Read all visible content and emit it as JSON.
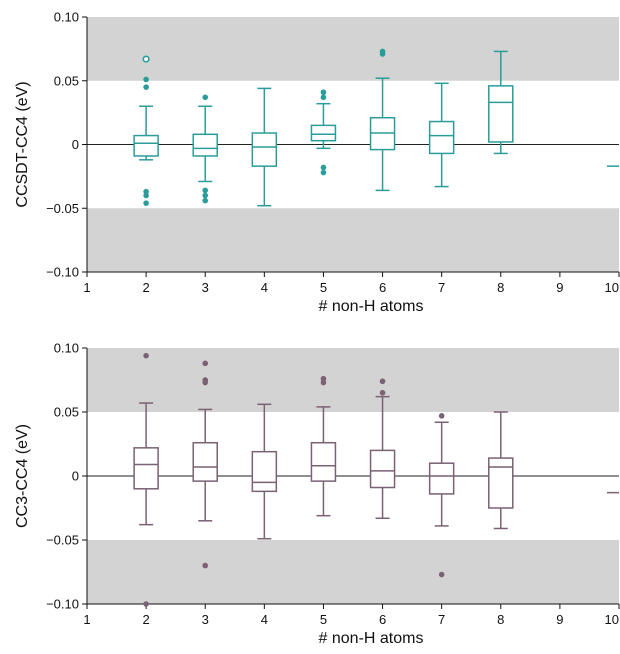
{
  "chart_data": [
    {
      "type": "box",
      "id": "top",
      "color": "#2a9d9a",
      "ylabel": "CCSDT-CC4 (eV)",
      "xlabel": "# non-H atoms",
      "xlim": [
        1,
        10
      ],
      "ylim": [
        -0.1,
        0.1
      ],
      "xticks": [
        1,
        2,
        3,
        4,
        5,
        6,
        7,
        8,
        9,
        10
      ],
      "yticks": [
        -0.1,
        -0.05,
        0,
        0.05,
        0.1
      ],
      "ytick_labels": [
        "−0.10",
        "−0.05",
        "0",
        "0.05",
        "0.10"
      ],
      "shaded_bands": [
        [
          0.05,
          0.1
        ],
        [
          -0.1,
          -0.05
        ]
      ],
      "zero_line": 0,
      "groups": [
        {
          "x": 2,
          "q1": -0.009,
          "median": 0.001,
          "q3": 0.007,
          "whisker_low": -0.012,
          "whisker_high": 0.03,
          "outliers": [
            0.067,
            0.051,
            0.045,
            -0.037,
            -0.04,
            -0.046
          ],
          "open_outliers": [
            0.067
          ]
        },
        {
          "x": 3,
          "q1": -0.009,
          "median": -0.003,
          "q3": 0.008,
          "whisker_low": -0.029,
          "whisker_high": 0.03,
          "outliers": [
            0.037,
            -0.036,
            -0.04,
            -0.044
          ],
          "open_outliers": []
        },
        {
          "x": 4,
          "q1": -0.017,
          "median": -0.002,
          "q3": 0.009,
          "whisker_low": -0.048,
          "whisker_high": 0.044,
          "outliers": [],
          "open_outliers": []
        },
        {
          "x": 5,
          "q1": 0.003,
          "median": 0.008,
          "q3": 0.015,
          "whisker_low": -0.003,
          "whisker_high": 0.032,
          "outliers": [
            0.041,
            0.037,
            -0.018,
            -0.022
          ],
          "open_outliers": []
        },
        {
          "x": 6,
          "q1": -0.004,
          "median": 0.009,
          "q3": 0.021,
          "whisker_low": -0.036,
          "whisker_high": 0.052,
          "outliers": [
            0.073,
            0.071
          ],
          "open_outliers": []
        },
        {
          "x": 7,
          "q1": -0.007,
          "median": 0.007,
          "q3": 0.018,
          "whisker_low": -0.033,
          "whisker_high": 0.048,
          "outliers": [],
          "open_outliers": []
        },
        {
          "x": 8,
          "q1": 0.002,
          "median": 0.033,
          "q3": 0.046,
          "whisker_low": -0.007,
          "whisker_high": 0.073,
          "outliers": [],
          "open_outliers": []
        },
        {
          "x": 10,
          "single": -0.017
        }
      ]
    },
    {
      "type": "box",
      "id": "bottom",
      "color": "#7a6173",
      "ylabel": "CC3-CC4 (eV)",
      "xlabel": "# non-H atoms",
      "xlim": [
        1,
        10
      ],
      "ylim": [
        -0.1,
        0.1
      ],
      "xticks": [
        1,
        2,
        3,
        4,
        5,
        6,
        7,
        8,
        9,
        10
      ],
      "yticks": [
        -0.1,
        -0.05,
        0,
        0.05,
        0.1
      ],
      "ytick_labels": [
        "−0.10",
        "−0.05",
        "0",
        "0.05",
        "0.10"
      ],
      "shaded_bands": [
        [
          0.05,
          0.1
        ],
        [
          -0.1,
          -0.05
        ]
      ],
      "zero_line": 0,
      "groups": [
        {
          "x": 2,
          "q1": -0.01,
          "median": 0.009,
          "q3": 0.022,
          "whisker_low": -0.038,
          "whisker_high": 0.057,
          "outliers": [
            0.094,
            -0.1
          ],
          "open_outliers": []
        },
        {
          "x": 3,
          "q1": -0.004,
          "median": 0.007,
          "q3": 0.026,
          "whisker_low": -0.035,
          "whisker_high": 0.052,
          "outliers": [
            0.088,
            0.075,
            0.073,
            -0.07
          ],
          "open_outliers": []
        },
        {
          "x": 4,
          "q1": -0.012,
          "median": -0.005,
          "q3": 0.019,
          "whisker_low": -0.049,
          "whisker_high": 0.056,
          "outliers": [],
          "open_outliers": []
        },
        {
          "x": 5,
          "q1": -0.004,
          "median": 0.008,
          "q3": 0.026,
          "whisker_low": -0.031,
          "whisker_high": 0.054,
          "outliers": [
            0.076,
            0.073
          ],
          "open_outliers": []
        },
        {
          "x": 6,
          "q1": -0.009,
          "median": 0.004,
          "q3": 0.02,
          "whisker_low": -0.033,
          "whisker_high": 0.062,
          "outliers": [
            0.074,
            0.065
          ],
          "open_outliers": []
        },
        {
          "x": 7,
          "q1": -0.014,
          "median": 0.0,
          "q3": 0.01,
          "whisker_low": -0.039,
          "whisker_high": 0.042,
          "outliers": [
            0.047,
            -0.077
          ],
          "open_outliers": []
        },
        {
          "x": 8,
          "q1": -0.025,
          "median": 0.007,
          "q3": 0.014,
          "whisker_low": -0.041,
          "whisker_high": 0.05,
          "outliers": [],
          "open_outliers": []
        },
        {
          "x": 10,
          "single": -0.013
        }
      ]
    }
  ]
}
